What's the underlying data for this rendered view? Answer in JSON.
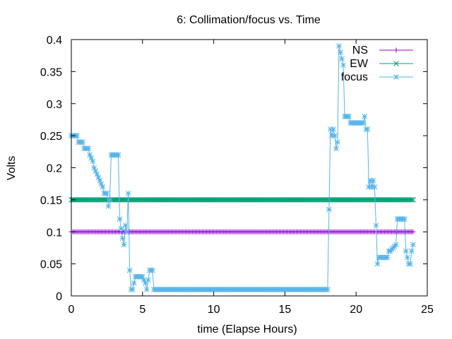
{
  "chart_data": {
    "type": "line",
    "title": "6: Collimation/focus vs. Time",
    "xlabel": "time (Elapse Hours)",
    "ylabel": "Volts",
    "xlim": [
      0,
      25
    ],
    "ylim": [
      0,
      0.4
    ],
    "xticks": [
      0,
      5,
      10,
      15,
      20,
      25
    ],
    "xtick_labels": [
      "0",
      "5",
      "10",
      "15",
      "20",
      "25"
    ],
    "yticks": [
      0,
      0.05,
      0.1,
      0.15,
      0.2,
      0.25,
      0.3,
      0.35,
      0.4
    ],
    "ytick_labels": [
      "0",
      "0.05",
      "0.1",
      "0.15",
      "0.2",
      "0.25",
      "0.3",
      "0.35",
      "0.4"
    ],
    "grid": false,
    "legend_position": "top-right",
    "series": [
      {
        "name": "NS",
        "color": "#9400d3",
        "marker": "plus",
        "x": [
          0,
          24
        ],
        "y": [
          0.1,
          0.1
        ],
        "sample_step": 0.1
      },
      {
        "name": "EW",
        "color": "#009e73",
        "marker": "cross",
        "x": [
          0,
          24
        ],
        "y": [
          0.15,
          0.15
        ],
        "sample_step": 0.1
      },
      {
        "name": "focus",
        "color": "#56b4e9",
        "marker": "star",
        "sample_step": 0.1,
        "x": [
          0,
          0.4,
          0.5,
          0.8,
          0.9,
          1.2,
          1.3,
          1.5,
          1.6,
          1.8,
          2.0,
          2.2,
          2.3,
          2.5,
          2.6,
          2.7,
          2.8,
          3.3,
          3.4,
          3.6,
          3.7,
          3.8,
          3.9,
          4.0,
          4.1,
          4.2,
          4.3,
          4.4,
          4.5,
          5.0,
          5.2,
          5.3,
          5.5,
          5.7,
          5.8,
          6.0,
          18.0,
          18.2,
          18.3,
          18.4,
          18.5,
          18.6,
          18.7,
          18.8,
          18.9,
          19.0,
          19.1,
          19.2,
          19.5,
          19.6,
          20.5,
          20.6,
          20.7,
          20.8,
          20.9,
          21.0,
          21.1,
          21.2,
          21.3,
          21.5,
          21.6,
          21.7,
          22.2,
          22.3,
          22.4,
          22.8,
          22.9,
          23.3,
          23.4,
          23.5,
          23.6,
          23.7,
          23.8,
          23.9,
          24.0
        ],
        "y": [
          0.25,
          0.25,
          0.24,
          0.24,
          0.23,
          0.23,
          0.22,
          0.21,
          0.2,
          0.19,
          0.18,
          0.17,
          0.16,
          0.16,
          0.14,
          0.15,
          0.22,
          0.22,
          0.12,
          0.09,
          0.08,
          0.11,
          0.1,
          0.16,
          0.04,
          0.01,
          0.01,
          0.02,
          0.03,
          0.03,
          0.02,
          0.01,
          0.04,
          0.04,
          0.01,
          0.01,
          0.01,
          0.26,
          0.25,
          0.26,
          0.25,
          0.23,
          0.24,
          0.39,
          0.38,
          0.37,
          0.36,
          0.28,
          0.28,
          0.27,
          0.27,
          0.28,
          0.26,
          0.26,
          0.17,
          0.18,
          0.17,
          0.18,
          0.17,
          0.05,
          0.06,
          0.06,
          0.06,
          0.07,
          0.07,
          0.08,
          0.12,
          0.12,
          0.12,
          0.07,
          0.06,
          0.05,
          0.05,
          0.07,
          0.08
        ]
      }
    ]
  }
}
